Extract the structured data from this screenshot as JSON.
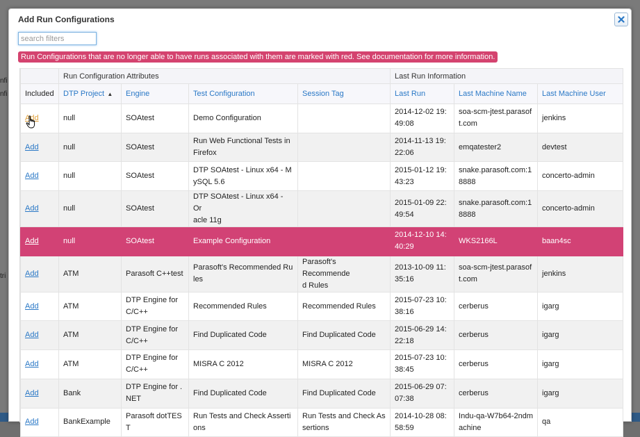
{
  "background": {
    "fragments": [
      "nfi",
      "nfi",
      "tri"
    ]
  },
  "dialog": {
    "title": "Add Run Configurations",
    "close_icon": "close-icon",
    "search": {
      "placeholder": "search filters",
      "value": ""
    },
    "warning": "Run Configurations that are no longer able to have runs associated with them are marked with red. See documentation for more information."
  },
  "table": {
    "groups": {
      "attributes": "Run Configuration Attributes",
      "last_run": "Last Run Information"
    },
    "columns": {
      "included": "Included",
      "project": "DTP Project",
      "engine": "Engine",
      "test_config": "Test Configuration",
      "session_tag": "Session Tag",
      "last_run": "Last Run",
      "machine": "Last Machine Name",
      "user": "Last Machine User"
    },
    "sort": {
      "column": "DTP Project",
      "direction": "ascending",
      "icon": "sort-up-icon"
    },
    "colors": {
      "invalid_row": "#d24275",
      "link": "#2a78c6"
    },
    "rows": [
      {
        "action": "Add",
        "project": "null",
        "engine": "SOAtest",
        "test_config": "Demo Configuration",
        "session_tag": "",
        "last_run": "2014-12-02 19:\n49:08",
        "machine": "soa-scm-jtest.parasof\nt.com",
        "user": "jenkins",
        "invalid": false
      },
      {
        "action": "Add",
        "project": "null",
        "engine": "SOAtest",
        "test_config": "Run Web Functional Tests in\nFirefox",
        "session_tag": "",
        "last_run": "2014-11-13 19:\n22:06",
        "machine": "emqatester2",
        "user": "devtest",
        "invalid": false
      },
      {
        "action": "Add",
        "project": "null",
        "engine": "SOAtest",
        "test_config": "DTP SOAtest - Linux x64 - M\nySQL 5.6",
        "session_tag": "",
        "last_run": "2015-01-12 19:\n43:23",
        "machine": "snake.parasoft.com:1\n8888",
        "user": "concerto-admin",
        "invalid": false
      },
      {
        "action": "Add",
        "project": "null",
        "engine": "SOAtest",
        "test_config": "DTP SOAtest - Linux x64 - Or\nacle 11g",
        "session_tag": "",
        "last_run": "2015-01-09 22:\n49:54",
        "machine": "snake.parasoft.com:1\n8888",
        "user": "concerto-admin",
        "invalid": false
      },
      {
        "action": "Add",
        "project": "null",
        "engine": "SOAtest",
        "test_config": "Example Configuration",
        "session_tag": "",
        "last_run": "2014-12-10 14:\n40:29",
        "machine": "WKS2166L",
        "user": "baan4sc",
        "invalid": true
      },
      {
        "action": "Add",
        "project": "ATM",
        "engine": "Parasoft C++test",
        "test_config": "Parasoft's Recommended Ru\nles",
        "session_tag": "Parasoft's Recommende\nd Rules",
        "last_run": "2013-10-09 11:\n35:16",
        "machine": "soa-scm-jtest.parasof\nt.com",
        "user": "jenkins",
        "invalid": false
      },
      {
        "action": "Add",
        "project": "ATM",
        "engine": "DTP Engine for\nC/C++",
        "test_config": "Recommended Rules",
        "session_tag": "Recommended Rules",
        "last_run": "2015-07-23 10:\n38:16",
        "machine": "cerberus",
        "user": "igarg",
        "invalid": false
      },
      {
        "action": "Add",
        "project": "ATM",
        "engine": "DTP Engine for\nC/C++",
        "test_config": "Find Duplicated Code",
        "session_tag": "Find Duplicated Code",
        "last_run": "2015-06-29 14:\n22:18",
        "machine": "cerberus",
        "user": "igarg",
        "invalid": false
      },
      {
        "action": "Add",
        "project": "ATM",
        "engine": "DTP Engine for\nC/C++",
        "test_config": "MISRA C 2012",
        "session_tag": "MISRA C 2012",
        "last_run": "2015-07-23 10:\n38:45",
        "machine": "cerberus",
        "user": "igarg",
        "invalid": false
      },
      {
        "action": "Add",
        "project": "Bank",
        "engine": "DTP Engine for .\nNET",
        "test_config": "Find Duplicated Code",
        "session_tag": "Find Duplicated Code",
        "last_run": "2015-06-29 07:\n07:38",
        "machine": "cerberus",
        "user": "igarg",
        "invalid": false
      },
      {
        "action": "Add",
        "project": "BankExample",
        "engine": "Parasoft dotTES\nT",
        "test_config": "Run Tests and Check Asserti\nons",
        "session_tag": "Run Tests and Check As\nsertions",
        "last_run": "2014-10-28 08:\n58:59",
        "machine": "Indu-qa-W7b64-2ndm\nachine",
        "user": "qa",
        "invalid": false
      }
    ]
  }
}
